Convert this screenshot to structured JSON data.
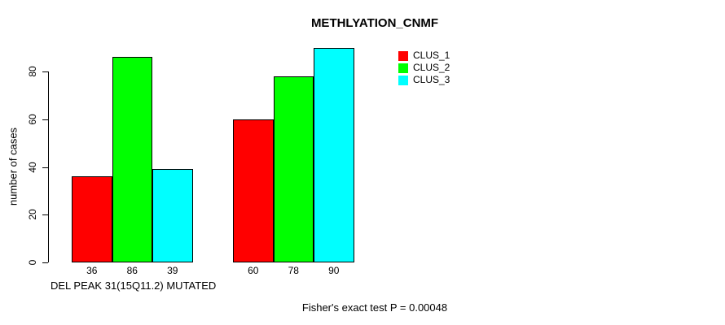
{
  "colors": {
    "background": "#FFFFFF",
    "axis": "#000000",
    "text": "#000000",
    "bar_border": "#000000"
  },
  "chart_data": {
    "type": "bar",
    "title": "METHLYATION_CNMF",
    "ylabel": "number of cases",
    "xlabel": "DEL PEAK 31(15Q11.2) MUTATED",
    "annotation": "Fisher's exact test P = 0.00048",
    "ylim": [
      0,
      93
    ],
    "yticks": [
      0,
      20,
      40,
      60,
      80
    ],
    "grid": false,
    "legend": {
      "position": "top-right",
      "entries": [
        "CLUS_1",
        "CLUS_2",
        "CLUS_3"
      ]
    },
    "categories": [
      "DEL PEAK 31(15Q11.2) MUTATED",
      ""
    ],
    "series": [
      {
        "name": "CLUS_1",
        "color": "#FF0000",
        "values": [
          36,
          60
        ]
      },
      {
        "name": "CLUS_2",
        "color": "#00FF00",
        "values": [
          86,
          78
        ]
      },
      {
        "name": "CLUS_3",
        "color": "#00FFFF",
        "values": [
          39,
          90
        ]
      }
    ]
  }
}
